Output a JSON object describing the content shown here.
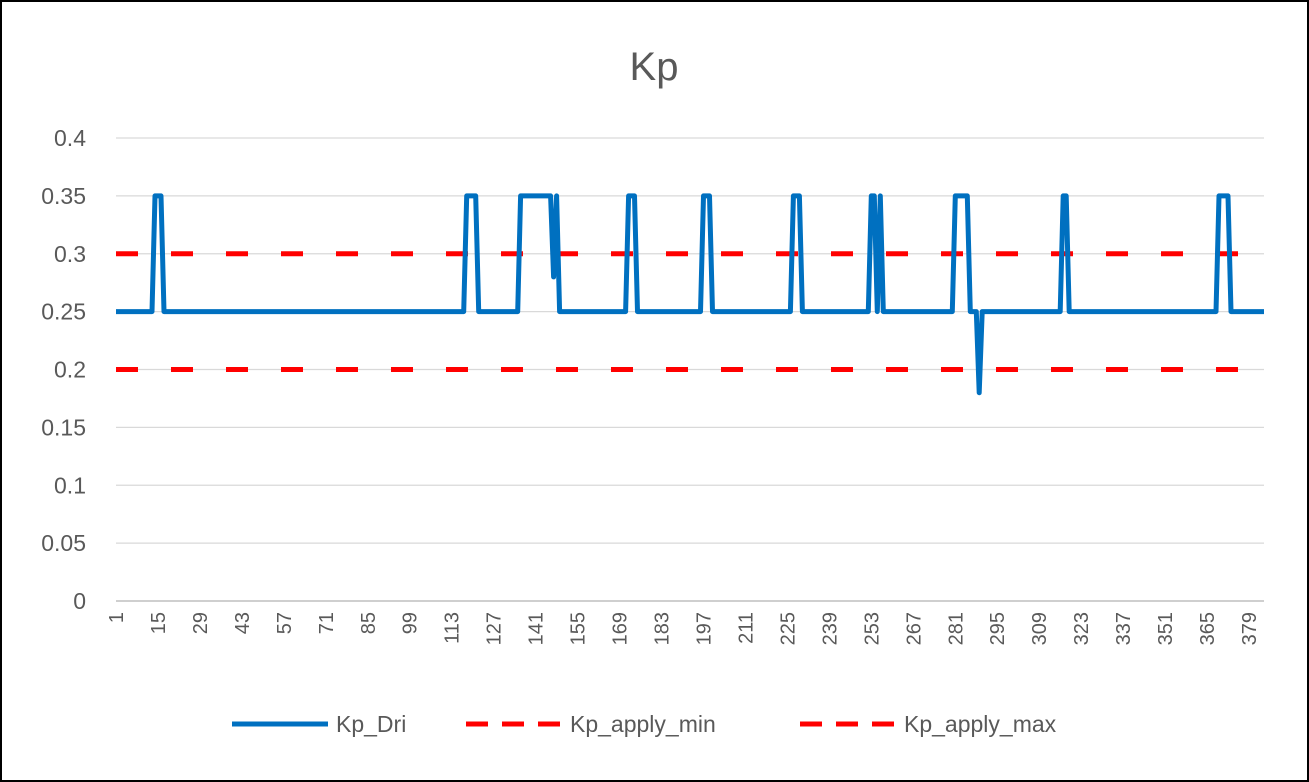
{
  "chart_data": {
    "type": "line",
    "title": "Kp",
    "xlabel": "",
    "ylabel": "",
    "ylim": [
      0,
      0.4
    ],
    "yticks": [
      "0",
      "0.05",
      "0.1",
      "0.15",
      "0.2",
      "0.25",
      "0.3",
      "0.35",
      "0.4"
    ],
    "xrange": [
      1,
      384
    ],
    "xtick_labels": [
      "1",
      "15",
      "29",
      "43",
      "57",
      "71",
      "85",
      "99",
      "113",
      "127",
      "141",
      "155",
      "169",
      "183",
      "197",
      "211",
      "225",
      "239",
      "253",
      "267",
      "281",
      "295",
      "309",
      "323",
      "337",
      "351",
      "365",
      "379"
    ],
    "grid": true,
    "legend_position": "bottom",
    "series": [
      {
        "name": "Kp_Dri",
        "color": "#0070C0",
        "style": "solid",
        "points": [
          [
            1,
            0.25
          ],
          [
            13,
            0.25
          ],
          [
            14,
            0.35
          ],
          [
            16,
            0.35
          ],
          [
            17,
            0.25
          ],
          [
            117,
            0.25
          ],
          [
            118,
            0.35
          ],
          [
            121,
            0.35
          ],
          [
            122,
            0.25
          ],
          [
            135,
            0.25
          ],
          [
            136,
            0.35
          ],
          [
            146,
            0.35
          ],
          [
            147,
            0.28
          ],
          [
            148,
            0.35
          ],
          [
            149,
            0.25
          ],
          [
            171,
            0.25
          ],
          [
            172,
            0.35
          ],
          [
            174,
            0.35
          ],
          [
            175,
            0.25
          ],
          [
            196,
            0.25
          ],
          [
            197,
            0.35
          ],
          [
            199,
            0.35
          ],
          [
            200,
            0.25
          ],
          [
            226,
            0.25
          ],
          [
            227,
            0.35
          ],
          [
            229,
            0.35
          ],
          [
            230,
            0.25
          ],
          [
            252,
            0.25
          ],
          [
            253,
            0.35
          ],
          [
            254,
            0.35
          ],
          [
            255,
            0.25
          ],
          [
            256,
            0.35
          ],
          [
            257,
            0.25
          ],
          [
            280,
            0.25
          ],
          [
            281,
            0.35
          ],
          [
            285,
            0.35
          ],
          [
            286,
            0.25
          ],
          [
            288,
            0.25
          ],
          [
            289,
            0.18
          ],
          [
            290,
            0.25
          ],
          [
            316,
            0.25
          ],
          [
            317,
            0.35
          ],
          [
            318,
            0.35
          ],
          [
            319,
            0.25
          ],
          [
            368,
            0.25
          ],
          [
            369,
            0.35
          ],
          [
            372,
            0.35
          ],
          [
            373,
            0.25
          ],
          [
            384,
            0.25
          ]
        ]
      },
      {
        "name": "Kp_apply_min",
        "color": "#FF0000",
        "style": "dashed",
        "points": [
          [
            1,
            0.2
          ],
          [
            384,
            0.2
          ]
        ]
      },
      {
        "name": "Kp_apply_max",
        "color": "#FF0000",
        "style": "dashed",
        "points": [
          [
            1,
            0.3
          ],
          [
            384,
            0.3
          ]
        ]
      }
    ]
  }
}
